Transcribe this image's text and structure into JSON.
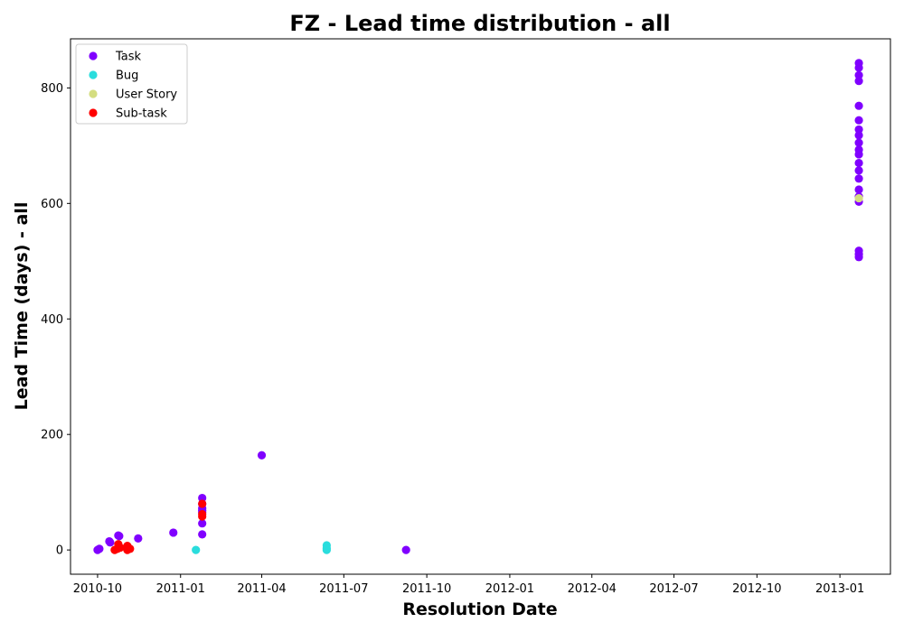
{
  "chart_data": {
    "type": "scatter",
    "title": "FZ - Lead time distribution - all",
    "xlabel": "Resolution Date",
    "ylabel": "Lead Time (days) - all",
    "xlim": [
      "2010-09-01",
      "2013-02-26"
    ],
    "ylim": [
      -42,
      885
    ],
    "x_ticks": [
      "2010-10",
      "2011-01",
      "2011-04",
      "2011-07",
      "2011-10",
      "2012-01",
      "2012-04",
      "2012-07",
      "2012-10",
      "2013-01"
    ],
    "y_ticks": [
      0,
      200,
      400,
      600,
      800
    ],
    "grid": false,
    "legend_position": "top-left",
    "series": [
      {
        "name": "Task",
        "color": "#8000ff",
        "points": [
          {
            "date": "2010-10-01",
            "value": 0
          },
          {
            "date": "2010-10-03",
            "value": 2
          },
          {
            "date": "2010-10-14",
            "value": 15
          },
          {
            "date": "2010-10-15",
            "value": 13
          },
          {
            "date": "2010-10-24",
            "value": 25
          },
          {
            "date": "2010-10-25",
            "value": 24
          },
          {
            "date": "2010-11-15",
            "value": 20
          },
          {
            "date": "2010-12-24",
            "value": 30
          },
          {
            "date": "2011-01-25",
            "value": 90
          },
          {
            "date": "2011-01-25",
            "value": 80
          },
          {
            "date": "2011-01-25",
            "value": 72
          },
          {
            "date": "2011-01-25",
            "value": 68
          },
          {
            "date": "2011-01-25",
            "value": 65
          },
          {
            "date": "2011-01-25",
            "value": 46
          },
          {
            "date": "2011-01-25",
            "value": 27
          },
          {
            "date": "2011-04-01",
            "value": 164
          },
          {
            "date": "2011-09-08",
            "value": 0
          },
          {
            "date": "2013-01-22",
            "value": 843
          },
          {
            "date": "2013-01-22",
            "value": 835
          },
          {
            "date": "2013-01-22",
            "value": 822
          },
          {
            "date": "2013-01-22",
            "value": 812
          },
          {
            "date": "2013-01-22",
            "value": 769
          },
          {
            "date": "2013-01-22",
            "value": 744
          },
          {
            "date": "2013-01-22",
            "value": 728
          },
          {
            "date": "2013-01-22",
            "value": 718
          },
          {
            "date": "2013-01-22",
            "value": 705
          },
          {
            "date": "2013-01-22",
            "value": 693
          },
          {
            "date": "2013-01-22",
            "value": 685
          },
          {
            "date": "2013-01-22",
            "value": 670
          },
          {
            "date": "2013-01-22",
            "value": 657
          },
          {
            "date": "2013-01-22",
            "value": 643
          },
          {
            "date": "2013-01-22",
            "value": 624
          },
          {
            "date": "2013-01-22",
            "value": 612
          },
          {
            "date": "2013-01-22",
            "value": 603
          },
          {
            "date": "2013-01-22",
            "value": 518
          },
          {
            "date": "2013-01-22",
            "value": 512
          },
          {
            "date": "2013-01-22",
            "value": 507
          }
        ]
      },
      {
        "name": "Bug",
        "color": "#2adddd",
        "points": [
          {
            "date": "2011-01-18",
            "value": 0
          },
          {
            "date": "2011-06-12",
            "value": 8
          },
          {
            "date": "2011-06-12",
            "value": 3
          },
          {
            "date": "2011-06-12",
            "value": 0
          }
        ]
      },
      {
        "name": "User Story",
        "color": "#d4dd80",
        "points": [
          {
            "date": "2013-01-22",
            "value": 609
          }
        ]
      },
      {
        "name": "Sub-task",
        "color": "#ff0000",
        "points": [
          {
            "date": "2010-10-20",
            "value": 0
          },
          {
            "date": "2010-10-23",
            "value": 2
          },
          {
            "date": "2010-10-24",
            "value": 10
          },
          {
            "date": "2010-10-25",
            "value": 5
          },
          {
            "date": "2010-10-26",
            "value": 4
          },
          {
            "date": "2010-11-03",
            "value": 0
          },
          {
            "date": "2010-11-03",
            "value": 7
          },
          {
            "date": "2010-11-04",
            "value": 3
          },
          {
            "date": "2010-11-06",
            "value": 2
          },
          {
            "date": "2011-01-25",
            "value": 80
          },
          {
            "date": "2011-01-25",
            "value": 62
          },
          {
            "date": "2011-01-25",
            "value": 58
          }
        ]
      }
    ]
  }
}
